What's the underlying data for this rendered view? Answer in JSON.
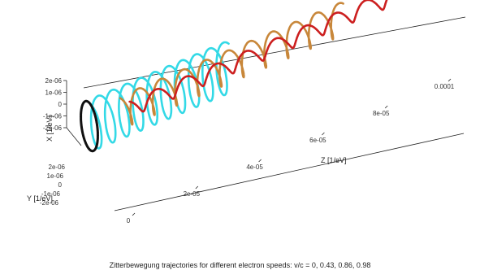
{
  "chart_data": {
    "type": "line",
    "title": "Zitterbewegung trajectories for different electron speeds: v/c = 0, 0.43, 0.86, 0.98",
    "axes": {
      "x": {
        "label": "X [1/eV]",
        "ticks": [
          "2e-06",
          "1e-06",
          "0",
          "-1e-06",
          "-2e-06"
        ]
      },
      "y": {
        "label": "Y [1/eV]",
        "ticks": [
          "2e-06",
          "1e-06",
          "0",
          "-1e-06",
          "-2e-06"
        ]
      },
      "z": {
        "label": "Z [1/eV]",
        "ticks": [
          "0",
          "2e-05",
          "4e-05",
          "6e-05",
          "8e-05",
          "0.0001"
        ]
      }
    },
    "xlim": [
      -2e-06,
      2e-06
    ],
    "ylim": [
      -2e-06,
      2e-06
    ],
    "zlim": [
      0,
      0.0001
    ],
    "series": [
      {
        "name": "v/c = 0",
        "color": "#111111",
        "radius": 1.9e-06,
        "z_start": 0,
        "z_end": 0,
        "turns": 1
      },
      {
        "name": "v/c = 0.43",
        "color": "#33d9e6",
        "radius": 1.9e-06,
        "z_start": 0,
        "z_end": 4.5e-05,
        "turns": 10
      },
      {
        "name": "v/c = 0.86",
        "color": "#c8873a",
        "radius": 1.2e-06,
        "z_start": 1e-05,
        "z_end": 8.2e-05,
        "turns": 10
      },
      {
        "name": "v/c = 0.98",
        "color": "#cc1f1f",
        "radius": 6e-07,
        "z_start": 1.3e-05,
        "z_end": 0.0001,
        "turns": 9
      }
    ]
  }
}
